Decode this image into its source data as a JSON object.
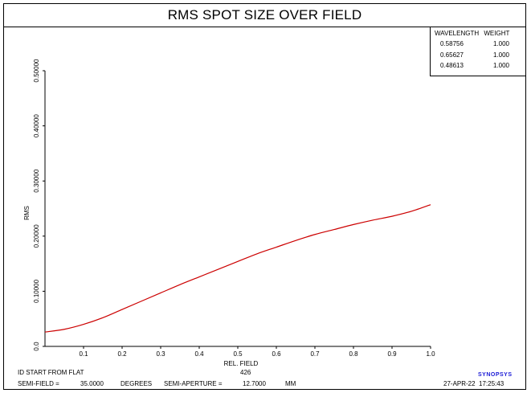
{
  "title": "RMS SPOT SIZE OVER FIELD",
  "legend": {
    "header_wavelength": "WAVELENGTH",
    "header_weight": "WEIGHT",
    "rows": [
      {
        "wavelength": "0.58756",
        "weight": "1.000"
      },
      {
        "wavelength": "0.65627",
        "weight": "1.000"
      },
      {
        "wavelength": "0.48613",
        "weight": "1.000"
      }
    ]
  },
  "footer": {
    "id_text": "ID START FROM FLAT",
    "id_number": "426",
    "semi_field_label": "SEMI-FIELD =",
    "semi_field_value": "35.0000",
    "semi_field_unit": "DEGREES",
    "semi_aperture_label": "SEMI-APERTURE =",
    "semi_aperture_value": "12.7000",
    "semi_aperture_unit": "MM",
    "date": "27-APR-22",
    "time": "17:25:43",
    "brand": "SYNOPSYS"
  },
  "chart_data": {
    "type": "line",
    "title": "RMS SPOT SIZE OVER FIELD",
    "xlabel": "REL. FIELD",
    "ylabel": "RMS",
    "xlim": [
      0,
      1.0
    ],
    "ylim": [
      0,
      0.5
    ],
    "x_ticks": [
      "0.1",
      "0.2",
      "0.3",
      "0.4",
      "0.5",
      "0.6",
      "0.7",
      "0.8",
      "0.9",
      "1.0"
    ],
    "x_tick_values": [
      0.1,
      0.2,
      0.3,
      0.4,
      0.5,
      0.6,
      0.7,
      0.8,
      0.9,
      1.0
    ],
    "y_ticks": [
      "0.0",
      "0.10000",
      "0.20000",
      "0.30000",
      "0.40000",
      "0.50000"
    ],
    "y_tick_values": [
      0.0,
      0.1,
      0.2,
      0.3,
      0.4,
      0.5
    ],
    "grid": false,
    "line_color": "#cc0000",
    "series": [
      {
        "x": [
          0.0,
          0.05,
          0.1,
          0.15,
          0.2,
          0.25,
          0.3,
          0.35,
          0.4,
          0.45,
          0.5,
          0.55,
          0.6,
          0.65,
          0.7,
          0.75,
          0.8,
          0.85,
          0.9,
          0.95,
          1.0
        ],
        "y": [
          0.026,
          0.031,
          0.04,
          0.052,
          0.067,
          0.082,
          0.097,
          0.112,
          0.126,
          0.14,
          0.154,
          0.168,
          0.18,
          0.192,
          0.203,
          0.212,
          0.221,
          0.229,
          0.236,
          0.245,
          0.257
        ]
      }
    ]
  }
}
